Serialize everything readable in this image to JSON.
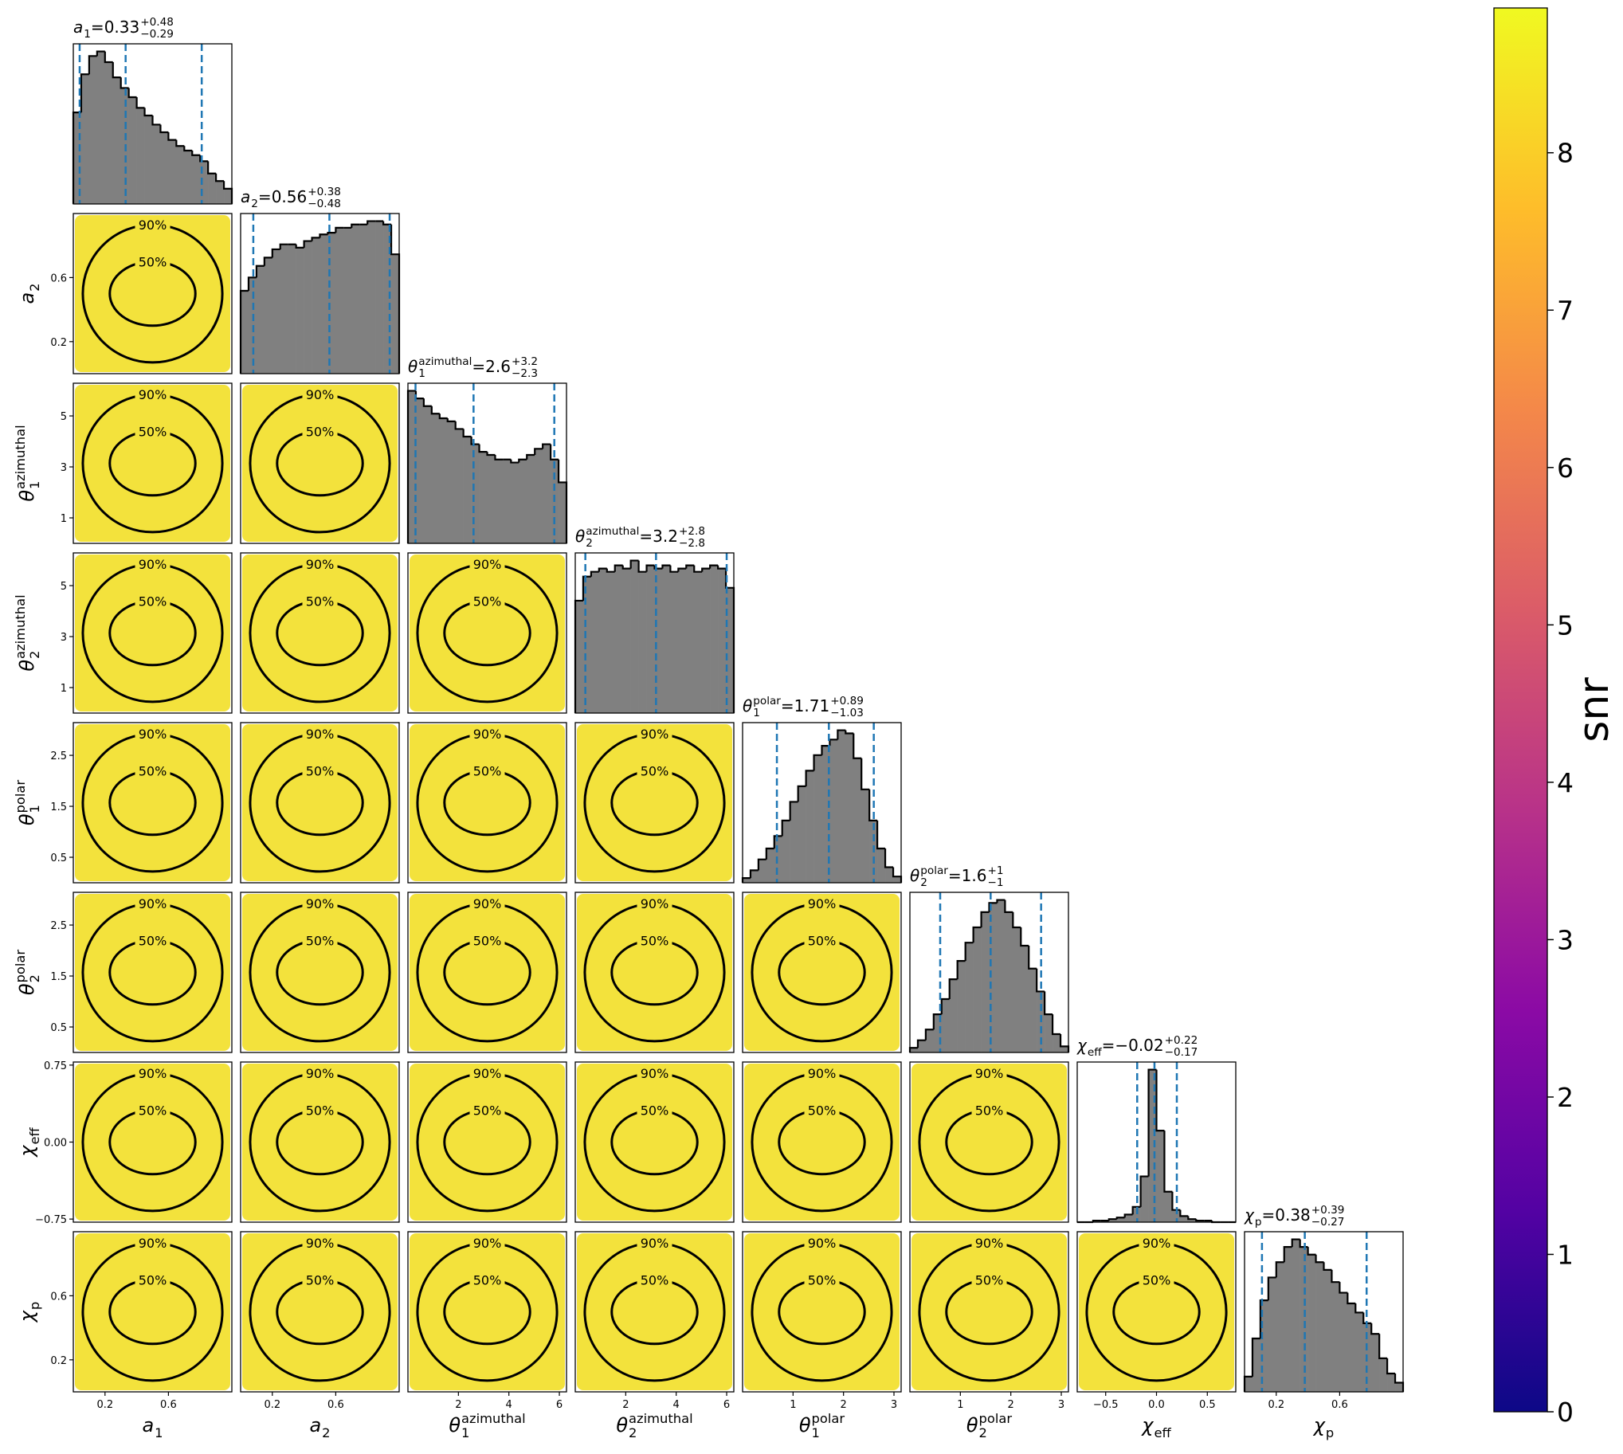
{
  "chart_data": {
    "type": "corner",
    "title_sep": " = ",
    "contour_labels": [
      "50%",
      "90%"
    ],
    "cloud_color": "#f3e23c",
    "hist_color": "#808080",
    "quantile_color": "#1f77b4",
    "parameters": [
      {
        "symbol": "a",
        "subscript": "1",
        "lim": [
          0,
          1
        ],
        "xticks": [
          0.2,
          0.6
        ],
        "yticks": [
          0.2,
          0.6
        ],
        "title_value": 0.33,
        "title_plus": "+0.48",
        "title_minus": "−0.29",
        "quantiles": [
          0.04,
          0.33,
          0.81
        ],
        "bins": [
          0,
          0.05,
          0.1,
          0.15,
          0.2,
          0.25,
          0.3,
          0.35,
          0.4,
          0.45,
          0.5,
          0.55,
          0.6,
          0.65,
          0.7,
          0.75,
          0.8,
          0.85,
          0.9,
          0.95,
          1
        ],
        "counts": [
          60,
          85,
          97,
          100,
          93,
          83,
          76,
          70,
          63,
          58,
          52,
          47,
          42,
          38,
          35,
          32,
          28,
          20,
          15,
          10
        ]
      },
      {
        "symbol": "a",
        "subscript": "2",
        "lim": [
          0,
          1
        ],
        "xticks": [
          0.2,
          0.6
        ],
        "yticks": [
          0.2,
          0.6
        ],
        "title_value": 0.56,
        "title_plus": "+0.38",
        "title_minus": "−0.48",
        "quantiles": [
          0.08,
          0.56,
          0.94
        ],
        "bins": [
          0,
          0.05,
          0.1,
          0.15,
          0.2,
          0.25,
          0.3,
          0.35,
          0.4,
          0.45,
          0.5,
          0.55,
          0.6,
          0.65,
          0.7,
          0.75,
          0.8,
          0.85,
          0.9,
          0.95,
          1
        ],
        "counts": [
          50,
          58,
          65,
          70,
          75,
          78,
          78,
          76,
          80,
          82,
          84,
          85,
          88,
          88,
          90,
          90,
          92,
          92,
          90,
          72
        ]
      },
      {
        "symbol": "θ",
        "subscript": "1",
        "superscript": "azimuthal",
        "lim": [
          0,
          6.283
        ],
        "xticks": [
          2,
          4,
          6
        ],
        "yticks": [
          1,
          3,
          5
        ],
        "title_value": 2.6,
        "title_plus": "+3.2",
        "title_minus": "−2.3",
        "quantiles": [
          0.3,
          2.6,
          5.8
        ],
        "bins": [
          0,
          0.314,
          0.628,
          0.942,
          1.257,
          1.571,
          1.885,
          2.199,
          2.513,
          2.827,
          3.142,
          3.456,
          3.77,
          4.084,
          4.398,
          4.712,
          5.027,
          5.341,
          5.655,
          5.969,
          6.283
        ],
        "counts": [
          100,
          95,
          90,
          85,
          82,
          80,
          75,
          70,
          65,
          60,
          58,
          55,
          55,
          53,
          55,
          58,
          62,
          65,
          55,
          40
        ]
      },
      {
        "symbol": "θ",
        "subscript": "2",
        "superscript": "azimuthal",
        "lim": [
          0,
          6.283
        ],
        "xticks": [
          2,
          4,
          6
        ],
        "yticks": [
          1,
          3,
          5
        ],
        "title_value": 3.2,
        "title_plus": "+2.8",
        "title_minus": "−2.8",
        "quantiles": [
          0.4,
          3.2,
          6.0
        ],
        "bins": [
          0,
          0.314,
          0.628,
          0.942,
          1.257,
          1.571,
          1.885,
          2.199,
          2.513,
          2.827,
          3.142,
          3.456,
          3.77,
          4.084,
          4.398,
          4.712,
          5.027,
          5.341,
          5.655,
          5.969,
          6.283
        ],
        "counts": [
          70,
          85,
          88,
          90,
          88,
          92,
          90,
          95,
          88,
          92,
          90,
          92,
          88,
          90,
          92,
          88,
          90,
          92,
          90,
          78
        ]
      },
      {
        "symbol": "θ",
        "subscript": "1",
        "superscript": "polar",
        "lim": [
          0,
          3.142
        ],
        "xticks": [
          1,
          2,
          3
        ],
        "yticks": [
          0.5,
          1.5,
          2.5
        ],
        "title_value": 1.71,
        "title_plus": "+0.89",
        "title_minus": "−1.03",
        "quantiles": [
          0.68,
          1.71,
          2.6
        ],
        "bins": [
          0,
          0.157,
          0.314,
          0.471,
          0.628,
          0.785,
          0.942,
          1.1,
          1.257,
          1.414,
          1.571,
          1.728,
          1.885,
          2.042,
          2.199,
          2.356,
          2.513,
          2.67,
          2.827,
          2.985,
          3.142
        ],
        "counts": [
          3,
          8,
          15,
          22,
          30,
          40,
          52,
          62,
          72,
          82,
          88,
          92,
          98,
          96,
          80,
          60,
          40,
          22,
          10,
          4
        ]
      },
      {
        "symbol": "θ",
        "subscript": "2",
        "superscript": "polar",
        "lim": [
          0,
          3.142
        ],
        "xticks": [
          1,
          2,
          3
        ],
        "yticks": [
          0.5,
          1.5,
          2.5
        ],
        "title_value": 1.6,
        "title_plus": "+1",
        "title_minus": "−1",
        "quantiles": [
          0.6,
          1.6,
          2.6
        ],
        "bins": [
          0,
          0.157,
          0.314,
          0.471,
          0.628,
          0.785,
          0.942,
          1.1,
          1.257,
          1.414,
          1.571,
          1.728,
          1.885,
          2.042,
          2.199,
          2.356,
          2.513,
          2.67,
          2.827,
          2.985,
          3.142
        ],
        "counts": [
          3,
          8,
          15,
          25,
          35,
          48,
          60,
          72,
          82,
          92,
          98,
          100,
          92,
          82,
          70,
          55,
          40,
          25,
          12,
          4
        ]
      },
      {
        "symbol": "χ",
        "subscript": "eff",
        "lim": [
          -0.78,
          0.78
        ],
        "xticks": [
          {
            "value": -0.5,
            "label": "−0.5"
          },
          {
            "value": 0,
            "label": "0.0"
          },
          0.5
        ],
        "yticks": [
          {
            "value": -0.75,
            "label": "−0.75"
          },
          {
            "value": 0,
            "label": "0.00"
          },
          0.75
        ],
        "title_value": "−0.02",
        "title_plus": "+0.22",
        "title_minus": "−0.17",
        "quantiles": [
          -0.19,
          -0.02,
          0.2
        ],
        "bins": [
          -0.78,
          -0.702,
          -0.624,
          -0.546,
          -0.468,
          -0.39,
          -0.312,
          -0.234,
          -0.156,
          -0.078,
          0,
          0.078,
          0.156,
          0.234,
          0.312,
          0.39,
          0.468,
          0.546,
          0.624,
          0.702,
          0.78
        ],
        "counts": [
          0,
          0,
          1,
          1,
          2,
          3,
          5,
          10,
          30,
          100,
          60,
          20,
          8,
          4,
          2,
          1,
          1,
          0,
          0,
          0
        ]
      },
      {
        "symbol": "χ",
        "subscript": "p",
        "lim": [
          0,
          1
        ],
        "xticks": [
          0.2,
          0.6
        ],
        "yticks": [
          0.2,
          0.6
        ],
        "title_value": 0.38,
        "title_plus": "+0.39",
        "title_minus": "−0.27",
        "quantiles": [
          0.11,
          0.38,
          0.77
        ],
        "bins": [
          0,
          0.05,
          0.1,
          0.15,
          0.2,
          0.25,
          0.3,
          0.35,
          0.4,
          0.45,
          0.5,
          0.55,
          0.6,
          0.65,
          0.7,
          0.75,
          0.8,
          0.85,
          0.9,
          0.95,
          1
        ],
        "counts": [
          10,
          35,
          60,
          75,
          85,
          95,
          100,
          95,
          90,
          85,
          80,
          72,
          65,
          58,
          52,
          45,
          38,
          22,
          12,
          6
        ]
      }
    ],
    "colorbar": {
      "label": "snr",
      "lim": [
        0,
        8.92
      ],
      "ticks": [
        0,
        1,
        2,
        3,
        4,
        5,
        6,
        7,
        8
      ],
      "colors": [
        "#0d0887",
        "#5302a3",
        "#8b0aa5",
        "#b83289",
        "#db5c68",
        "#f48849",
        "#febd2a",
        "#f0f921"
      ]
    }
  }
}
